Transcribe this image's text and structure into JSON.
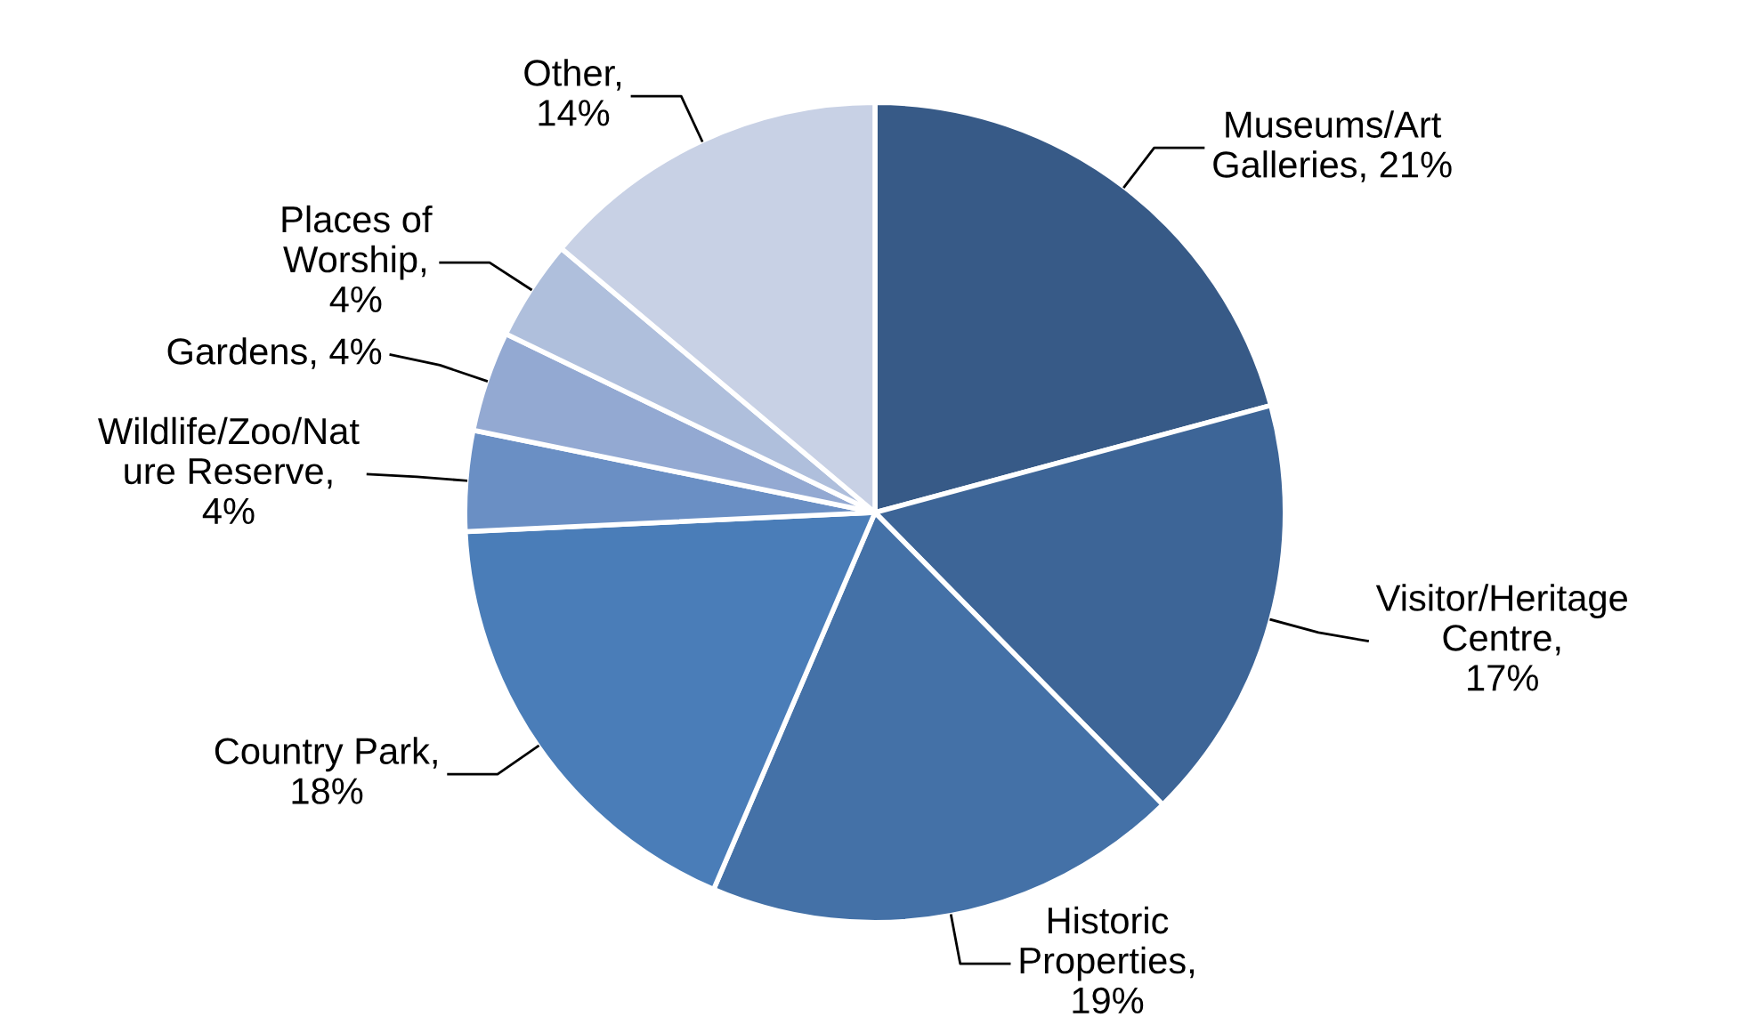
{
  "chart_data": {
    "type": "pie",
    "categories": [
      "Museums/Art\nGalleries, 21%",
      "Visitor/Heritage\nCentre,\n17%",
      "Historic\nProperties,\n19%",
      "Country Park,\n18%",
      "Wildlife/Zoo/Nat\nure Reserve,\n4%",
      "Gardens, 4%",
      "Places of\nWorship,\n4%",
      "Other,\n14%"
    ],
    "values": [
      21,
      17,
      19,
      18,
      4,
      4,
      4,
      14
    ],
    "colors": [
      "#375a87",
      "#3d6597",
      "#4471a7",
      "#4a7db8",
      "#6a8fc4",
      "#93a9d2",
      "#afbfdc",
      "#c8d1e5"
    ]
  }
}
